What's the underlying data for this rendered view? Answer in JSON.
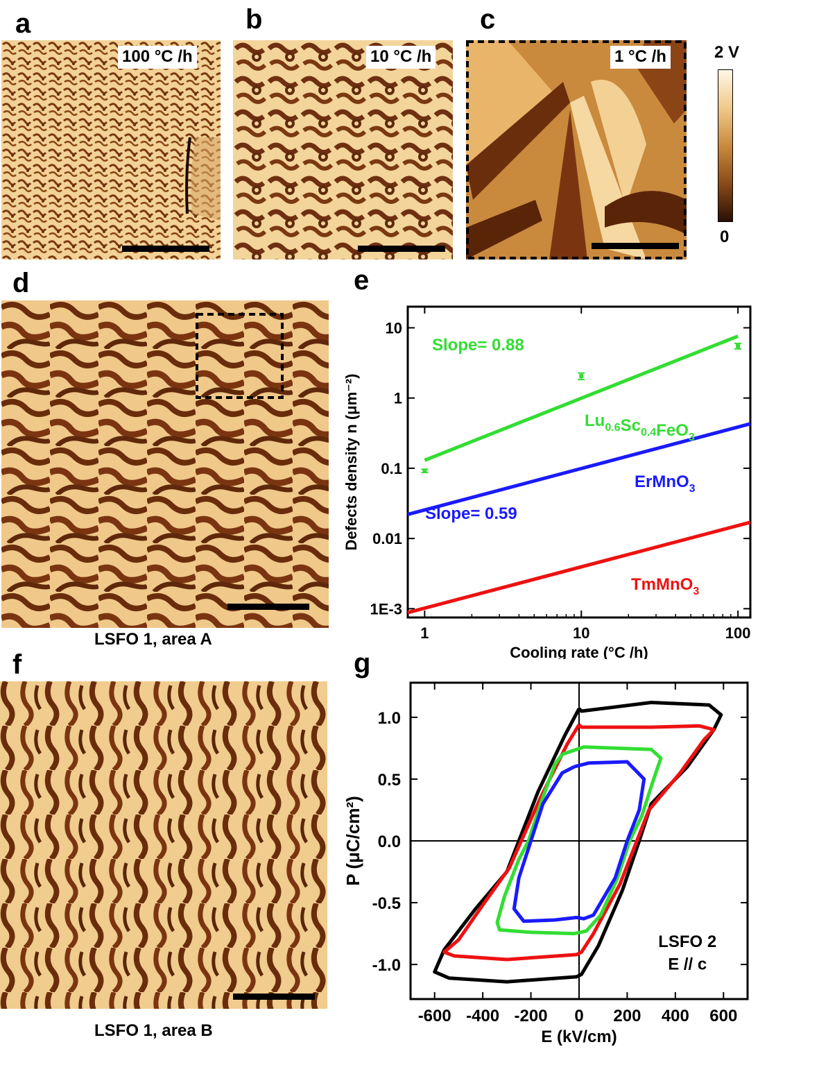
{
  "panels": {
    "a": {
      "label": "a",
      "tag": "100 °C /h"
    },
    "b": {
      "label": "b",
      "tag": "10 °C /h"
    },
    "c": {
      "label": "c",
      "tag": "1 °C /h"
    },
    "d": {
      "label": "d",
      "caption": "LSFO 1, area A"
    },
    "e": {
      "label": "e"
    },
    "f": {
      "label": "f",
      "caption": "LSFO 1, area B"
    },
    "g": {
      "label": "g"
    }
  },
  "colorbar": {
    "max_label": "2 V",
    "min_label": "0",
    "stops": [
      "#fff7e6",
      "#f0c98a",
      "#c98a3e",
      "#8a4a18",
      "#2a0f04"
    ]
  },
  "colors": {
    "green": "#33dd33",
    "blue": "#1a1aff",
    "red": "#ee1111",
    "black": "#000000",
    "afm_light": "#f3d49a",
    "afm_dark": "#5a2508"
  },
  "chart_data": [
    {
      "type": "line",
      "panel": "e",
      "xlabel": "Cooling rate (°C /h)",
      "ylabel": "Defects density n (μm⁻²)",
      "xscale": "log",
      "yscale": "log",
      "xlim": [
        0.78,
        120
      ],
      "ylim": [
        0.00075,
        20
      ],
      "xticks": [
        1,
        10,
        100
      ],
      "xtick_labels": [
        "1",
        "10",
        "100"
      ],
      "yticks": [
        0.001,
        0.01,
        0.1,
        1,
        10
      ],
      "ytick_labels": [
        "1E-3",
        "0.01",
        "0.1",
        "1",
        "10"
      ],
      "series": [
        {
          "name": "Lu0.6Sc0.4FeO3",
          "color": "#33dd33",
          "fit_x": [
            1,
            100
          ],
          "fit_y": [
            0.13,
            7.6
          ],
          "points": [
            {
              "x": 1,
              "y": 0.092,
              "err": 0.005
            },
            {
              "x": 10,
              "y": 2.05,
              "err": 0.22
            },
            {
              "x": 100,
              "y": 5.5,
              "err": 0.5
            }
          ],
          "slope_label": "Slope= 0.88"
        },
        {
          "name": "ErMnO3",
          "color": "#1a1aff",
          "fit_x": [
            0.78,
            120
          ],
          "fit_y": [
            0.022,
            0.43
          ],
          "slope_label": "Slope= 0.59"
        },
        {
          "name": "TmMnO3",
          "color": "#ee1111",
          "fit_x": [
            0.78,
            120
          ],
          "fit_y": [
            0.00088,
            0.017
          ]
        }
      ]
    },
    {
      "type": "line",
      "panel": "g",
      "xlabel": "E (kV/cm)",
      "ylabel": "P (μC/cm²)",
      "xlim": [
        -700,
        700
      ],
      "ylim": [
        -1.28,
        1.28
      ],
      "xticks": [
        -600,
        -400,
        -200,
        0,
        200,
        400,
        600
      ],
      "xtick_labels": [
        "-600",
        "-400",
        "-200",
        "0",
        "200",
        "400",
        "600"
      ],
      "yticks": [
        -1.0,
        -0.5,
        0.0,
        0.5,
        1.0
      ],
      "ytick_labels": [
        "-1.0",
        "-0.5",
        "0.0",
        "0.5",
        "1.0"
      ],
      "annotation": [
        "LSFO 2",
        "E // c"
      ],
      "series": [
        {
          "color": "#000000",
          "points": [
            [
              0,
              1.07
            ],
            [
              10,
              1.05
            ],
            [
              300,
              1.12
            ],
            [
              540,
              1.1
            ],
            [
              590,
              1.02
            ],
            [
              560,
              0.9
            ],
            [
              450,
              0.6
            ],
            [
              300,
              0.3
            ],
            [
              250,
              0
            ],
            [
              180,
              -0.4
            ],
            [
              80,
              -0.85
            ],
            [
              10,
              -1.08
            ],
            [
              -10,
              -1.1
            ],
            [
              -300,
              -1.14
            ],
            [
              -540,
              -1.11
            ],
            [
              -600,
              -1.06
            ],
            [
              -560,
              -0.88
            ],
            [
              -430,
              -0.55
            ],
            [
              -300,
              -0.25
            ],
            [
              -250,
              0
            ],
            [
              -170,
              0.4
            ],
            [
              -60,
              0.85
            ],
            [
              0,
              1.07
            ]
          ]
        },
        {
          "color": "#ee1111",
          "points": [
            [
              0,
              0.94
            ],
            [
              10,
              0.92
            ],
            [
              300,
              0.92
            ],
            [
              500,
              0.93
            ],
            [
              560,
              0.9
            ],
            [
              520,
              0.82
            ],
            [
              420,
              0.55
            ],
            [
              290,
              0.25
            ],
            [
              240,
              0
            ],
            [
              170,
              -0.35
            ],
            [
              60,
              -0.75
            ],
            [
              10,
              -0.9
            ],
            [
              -10,
              -0.92
            ],
            [
              -300,
              -0.96
            ],
            [
              -520,
              -0.93
            ],
            [
              -560,
              -0.9
            ],
            [
              -500,
              -0.8
            ],
            [
              -400,
              -0.52
            ],
            [
              -290,
              -0.22
            ],
            [
              -240,
              0
            ],
            [
              -160,
              0.35
            ],
            [
              -50,
              0.78
            ],
            [
              0,
              0.94
            ]
          ]
        },
        {
          "color": "#33dd33",
          "points": [
            [
              -70,
              0.7
            ],
            [
              20,
              0.76
            ],
            [
              300,
              0.74
            ],
            [
              340,
              0.67
            ],
            [
              310,
              0.5
            ],
            [
              260,
              0.2
            ],
            [
              210,
              0
            ],
            [
              160,
              -0.3
            ],
            [
              90,
              -0.6
            ],
            [
              30,
              -0.73
            ],
            [
              -20,
              -0.75
            ],
            [
              -200,
              -0.74
            ],
            [
              -330,
              -0.72
            ],
            [
              -340,
              -0.66
            ],
            [
              -310,
              -0.45
            ],
            [
              -250,
              -0.15
            ],
            [
              -210,
              0
            ],
            [
              -160,
              0.3
            ],
            [
              -100,
              0.62
            ],
            [
              -70,
              0.7
            ]
          ]
        },
        {
          "color": "#1a1aff",
          "points": [
            [
              -20,
              0.6
            ],
            [
              40,
              0.63
            ],
            [
              200,
              0.64
            ],
            [
              270,
              0.5
            ],
            [
              250,
              0.25
            ],
            [
              200,
              0
            ],
            [
              150,
              -0.3
            ],
            [
              60,
              -0.6
            ],
            [
              20,
              -0.63
            ],
            [
              -10,
              -0.62
            ],
            [
              -100,
              -0.64
            ],
            [
              -230,
              -0.65
            ],
            [
              -270,
              -0.55
            ],
            [
              -250,
              -0.3
            ],
            [
              -200,
              0
            ],
            [
              -150,
              0.3
            ],
            [
              -70,
              0.55
            ],
            [
              -20,
              0.6
            ]
          ]
        }
      ]
    }
  ]
}
